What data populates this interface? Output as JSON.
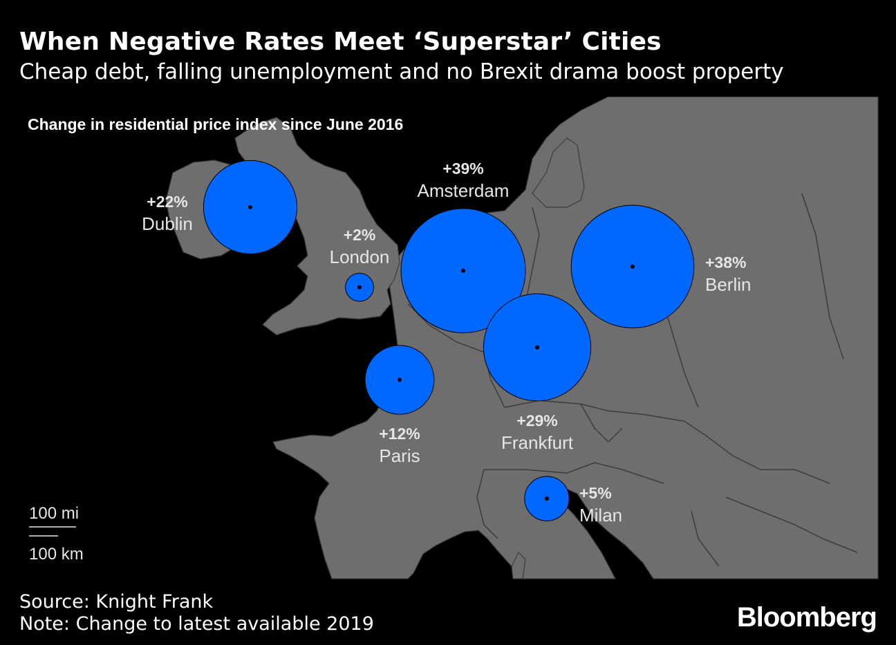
{
  "header": {
    "title": "When Negative Rates Meet ‘Superstar’ Cities",
    "subtitle": "Cheap debt, falling unemployment and no Brexit drama boost property"
  },
  "chart_data": {
    "type": "bubble-map",
    "title": "Change in residential price index since June 2016",
    "unit": "%",
    "points": [
      {
        "city": "Dublin",
        "value": 22,
        "label": "+22%"
      },
      {
        "city": "London",
        "value": 2,
        "label": "+2%"
      },
      {
        "city": "Amsterdam",
        "value": 39,
        "label": "+39%"
      },
      {
        "city": "Berlin",
        "value": 38,
        "label": "+38%"
      },
      {
        "city": "Paris",
        "value": 12,
        "label": "+12%"
      },
      {
        "city": "Frankfurt",
        "value": 29,
        "label": "+29%"
      },
      {
        "city": "Milan",
        "value": 5,
        "label": "+5%"
      }
    ],
    "colors": {
      "bubble": "#0068ff",
      "land": "#6e6e6e",
      "sea": "#000000",
      "border": "#3c3c3c"
    }
  },
  "scale": {
    "miles": "100 mi",
    "km": "100 km"
  },
  "footer": {
    "source": "Source: Knight Frank",
    "note": "Note: Change to latest available 2019",
    "brand": "Bloomberg"
  }
}
